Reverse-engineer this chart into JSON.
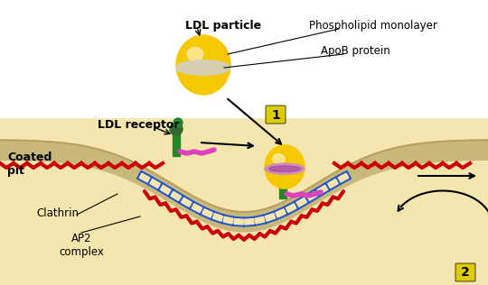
{
  "bg_color": "#f5e6b0",
  "membrane_color": "#c8b87a",
  "membrane_top_color": "#d4c48a",
  "clathrin_color": "#cc0000",
  "blue_coat_color": "#2255cc",
  "receptor_color": "#228822",
  "ldl_yellow": "#f5c800",
  "ldl_band_color": "#cccccc",
  "ldl_band2_color": "#cc88cc",
  "arrow_color": "#000000",
  "label_ldl": "LDL particle",
  "label_phospho": "Phospholipid monolayer",
  "label_apob": "ApoB protein",
  "label_receptor": "LDL receptor",
  "label_coated": "Coated\npit",
  "label_clathrin": "Clathrin",
  "label_ap2": "AP2\ncomplex",
  "number1_bg": "#ddcc00",
  "number2_bg": "#ddcc00",
  "white_bg": "#ffffff"
}
